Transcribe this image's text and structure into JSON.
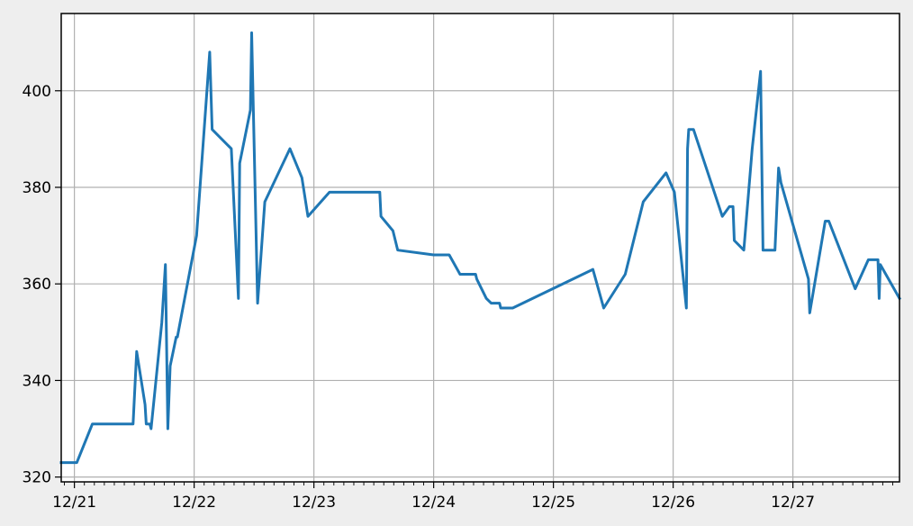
{
  "chart_data": {
    "type": "line",
    "title": "",
    "xlabel": "",
    "ylabel": "",
    "x_tick_labels": [
      "12/21",
      "12/22",
      "12/23",
      "12/24",
      "12/25",
      "12/26",
      "12/27"
    ],
    "y_tick_labels": [
      "320",
      "340",
      "360",
      "380",
      "400"
    ],
    "y_ticks": [
      320,
      340,
      360,
      380,
      400
    ],
    "x_ticks_days": [
      0,
      1,
      2,
      3,
      4,
      5,
      6
    ],
    "xlim_days": [
      -0.11,
      6.89
    ],
    "ylim": [
      319,
      416
    ],
    "x_unit": "days since 12/21",
    "grid": true,
    "line_color": "#1f77b4",
    "series": [
      {
        "name": "",
        "x": [
          -0.11,
          0.02,
          0.15,
          0.49,
          0.52,
          0.59,
          0.6,
          0.63,
          0.64,
          0.73,
          0.76,
          0.78,
          0.8,
          0.85,
          0.86,
          1.02,
          1.13,
          1.15,
          1.31,
          1.37,
          1.38,
          1.47,
          1.48,
          1.53,
          1.59,
          1.8,
          1.9,
          1.95,
          2.13,
          2.55,
          2.56,
          2.66,
          2.7,
          3.0,
          3.13,
          3.22,
          3.35,
          3.36,
          3.44,
          3.48,
          3.55,
          3.56,
          3.66,
          4.33,
          4.42,
          4.6,
          4.75,
          4.94,
          5.01,
          5.11,
          5.12,
          5.13,
          5.17,
          5.41,
          5.47,
          5.5,
          5.51,
          5.59,
          5.66,
          5.73,
          5.75,
          5.85,
          5.88,
          5.9,
          6.13,
          6.14,
          6.27,
          6.3,
          6.52,
          6.63,
          6.71,
          6.72,
          6.73,
          6.89
        ],
        "y": [
          323,
          323,
          331,
          331,
          346,
          335,
          331,
          331,
          330,
          352,
          364,
          330,
          343,
          349,
          349,
          370,
          408,
          392,
          388,
          357,
          385,
          396,
          412,
          356,
          377,
          388,
          382,
          374,
          379,
          379,
          374,
          371,
          367,
          366,
          366,
          362,
          362,
          361,
          357,
          356,
          356,
          355,
          355,
          363,
          355,
          362,
          377,
          383,
          379,
          355,
          388,
          392,
          392,
          374,
          376,
          376,
          369,
          367,
          388,
          404,
          367,
          367,
          384,
          381,
          361,
          354,
          373,
          373,
          359,
          365,
          365,
          357,
          364,
          357
        ]
      }
    ]
  }
}
